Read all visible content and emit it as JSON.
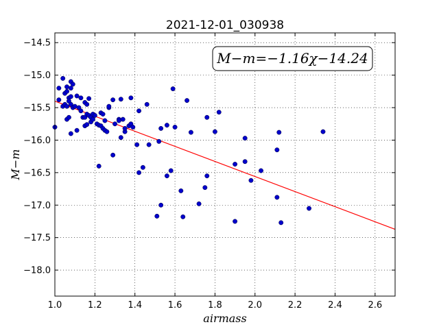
{
  "chart_data": {
    "type": "scatter",
    "title": "2021-12-01_030938",
    "xlabel": "airmass",
    "ylabel": "M−m",
    "xlim": [
      1.0,
      2.7
    ],
    "ylim": [
      -18.4,
      -14.35
    ],
    "y_inverted": true,
    "grid": true,
    "x_ticks": [
      1.0,
      1.2,
      1.4,
      1.6,
      1.8,
      2.0,
      2.2,
      2.4,
      2.6
    ],
    "x_tick_labels": [
      "1.0",
      "1.2",
      "1.4",
      "1.6",
      "1.8",
      "2.0",
      "2.2",
      "2.4",
      "2.6"
    ],
    "y_ticks": [
      -14.5,
      -15.0,
      -15.5,
      -16.0,
      -16.5,
      -17.0,
      -17.5,
      -18.0
    ],
    "y_tick_labels": [
      "−14.5",
      "−15.0",
      "−15.5",
      "−16.0",
      "−16.5",
      "−17.0",
      "−17.5",
      "−18.0"
    ],
    "fit_equation": "M−m=−1.16χ−14.24",
    "fit": {
      "slope": -1.16,
      "intercept": -14.24,
      "color": "#ff0000"
    },
    "point_color": "#0000cc",
    "points": [
      [
        1.0,
        -15.8
      ],
      [
        1.02,
        -15.2
      ],
      [
        1.02,
        -15.38
      ],
      [
        1.04,
        -15.05
      ],
      [
        1.04,
        -15.48
      ],
      [
        1.05,
        -15.45
      ],
      [
        1.05,
        -15.28
      ],
      [
        1.06,
        -15.25
      ],
      [
        1.06,
        -15.68
      ],
      [
        1.06,
        -15.48
      ],
      [
        1.06,
        -15.18
      ],
      [
        1.07,
        -15.65
      ],
      [
        1.07,
        -15.35
      ],
      [
        1.07,
        -15.4
      ],
      [
        1.08,
        -15.2
      ],
      [
        1.08,
        -15.1
      ],
      [
        1.08,
        -15.33
      ],
      [
        1.08,
        -15.45
      ],
      [
        1.08,
        -15.9
      ],
      [
        1.09,
        -15.14
      ],
      [
        1.09,
        -15.5
      ],
      [
        1.1,
        -15.48
      ],
      [
        1.11,
        -15.85
      ],
      [
        1.11,
        -15.32
      ],
      [
        1.12,
        -15.5
      ],
      [
        1.13,
        -15.35
      ],
      [
        1.13,
        -15.55
      ],
      [
        1.14,
        -15.65
      ],
      [
        1.15,
        -15.42
      ],
      [
        1.15,
        -15.78
      ],
      [
        1.15,
        -15.65
      ],
      [
        1.16,
        -15.45
      ],
      [
        1.16,
        -15.6
      ],
      [
        1.16,
        -15.76
      ],
      [
        1.17,
        -15.62
      ],
      [
        1.17,
        -15.36
      ],
      [
        1.18,
        -15.65
      ],
      [
        1.18,
        -15.72
      ],
      [
        1.19,
        -15.68
      ],
      [
        1.19,
        -15.6
      ],
      [
        1.2,
        -15.62
      ],
      [
        1.21,
        -15.75
      ],
      [
        1.22,
        -16.4
      ],
      [
        1.22,
        -15.77
      ],
      [
        1.23,
        -15.78
      ],
      [
        1.23,
        -15.58
      ],
      [
        1.24,
        -15.82
      ],
      [
        1.24,
        -15.6
      ],
      [
        1.25,
        -15.7
      ],
      [
        1.25,
        -15.85
      ],
      [
        1.26,
        -15.87
      ],
      [
        1.27,
        -15.5
      ],
      [
        1.27,
        -15.48
      ],
      [
        1.29,
        -16.23
      ],
      [
        1.29,
        -15.38
      ],
      [
        1.3,
        -15.75
      ],
      [
        1.32,
        -15.68
      ],
      [
        1.32,
        -15.7
      ],
      [
        1.33,
        -15.37
      ],
      [
        1.33,
        -15.96
      ],
      [
        1.34,
        -15.68
      ],
      [
        1.35,
        -15.87
      ],
      [
        1.35,
        -15.82
      ],
      [
        1.37,
        -15.78
      ],
      [
        1.38,
        -15.35
      ],
      [
        1.38,
        -15.75
      ],
      [
        1.39,
        -15.8
      ],
      [
        1.41,
        -16.07
      ],
      [
        1.42,
        -15.55
      ],
      [
        1.42,
        -16.5
      ],
      [
        1.44,
        -16.42
      ],
      [
        1.46,
        -15.45
      ],
      [
        1.47,
        -16.07
      ],
      [
        1.51,
        -17.17
      ],
      [
        1.52,
        -16.02
      ],
      [
        1.53,
        -17.0
      ],
      [
        1.53,
        -15.82
      ],
      [
        1.56,
        -16.55
      ],
      [
        1.56,
        -15.77
      ],
      [
        1.58,
        -16.47
      ],
      [
        1.59,
        -15.21
      ],
      [
        1.6,
        -15.8
      ],
      [
        1.63,
        -16.78
      ],
      [
        1.64,
        -17.18
      ],
      [
        1.66,
        -15.39
      ],
      [
        1.68,
        -15.88
      ],
      [
        1.72,
        -16.98
      ],
      [
        1.75,
        -16.73
      ],
      [
        1.76,
        -15.65
      ],
      [
        1.76,
        -16.55
      ],
      [
        1.8,
        -15.87
      ],
      [
        1.82,
        -15.57
      ],
      [
        1.9,
        -16.37
      ],
      [
        1.9,
        -17.25
      ],
      [
        1.95,
        -16.33
      ],
      [
        1.95,
        -15.97
      ],
      [
        1.98,
        -16.62
      ],
      [
        2.03,
        -16.47
      ],
      [
        2.11,
        -16.88
      ],
      [
        2.11,
        -16.15
      ],
      [
        2.12,
        -15.88
      ],
      [
        2.13,
        -17.27
      ],
      [
        2.27,
        -17.05
      ],
      [
        2.34,
        -15.87
      ]
    ]
  }
}
